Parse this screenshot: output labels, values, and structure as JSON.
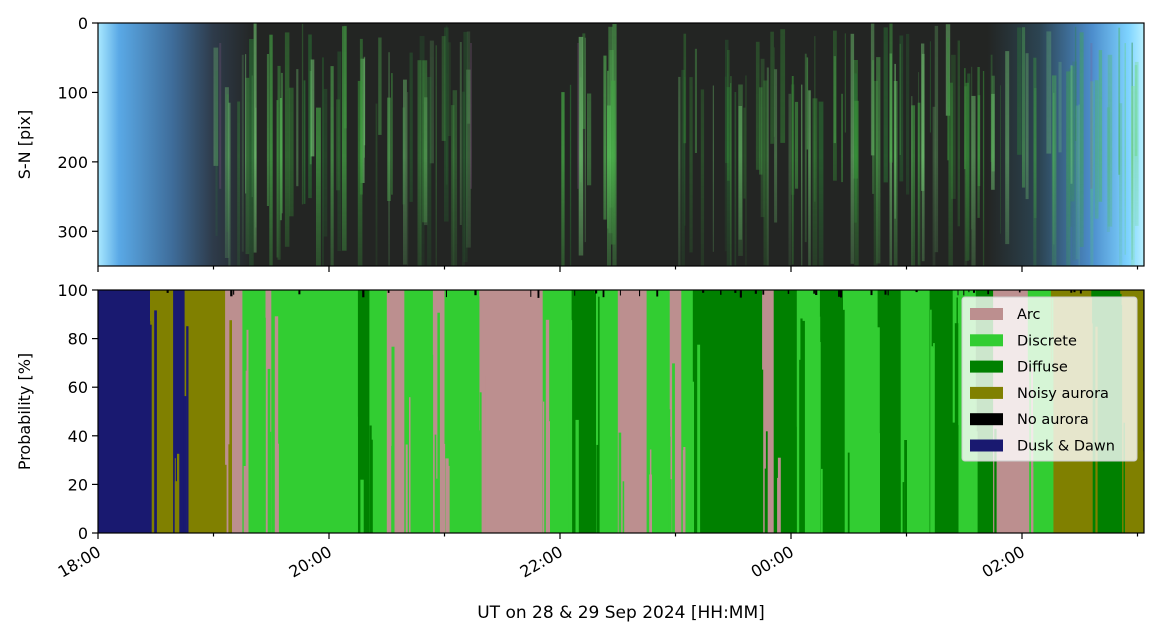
{
  "chart_data": [
    {
      "type": "heatmap",
      "description_kind": "keogram",
      "ylabel": "S-N [pix]",
      "y_ticks": [
        0,
        100,
        200,
        300
      ],
      "ylim": [
        350,
        0
      ],
      "x_range": [
        "18:00",
        "03:05"
      ],
      "aurora_bands": [
        {
          "start": 19.0,
          "end": 19.3,
          "color": "green",
          "intensity": 0.6
        },
        {
          "start": 19.3,
          "end": 19.7,
          "color": "green",
          "intensity": 0.9
        },
        {
          "start": 19.7,
          "end": 20.3,
          "color": "green",
          "intensity": 0.8
        },
        {
          "start": 20.3,
          "end": 20.9,
          "color": "green",
          "intensity": 0.6
        },
        {
          "start": 20.9,
          "end": 21.3,
          "color": "green",
          "intensity": 0.45
        },
        {
          "start": 22.0,
          "end": 22.5,
          "color": "green",
          "intensity": 0.95
        },
        {
          "start": 23.0,
          "end": 23.2,
          "color": "green",
          "intensity": 0.7
        },
        {
          "start": 23.2,
          "end": 23.6,
          "color": "green",
          "intensity": 0.6
        },
        {
          "start": 23.6,
          "end": 24.0,
          "color": "green",
          "intensity": 0.5
        },
        {
          "start": 24.0,
          "end": 25.0,
          "color": "green",
          "intensity": 0.8
        },
        {
          "start": 25.0,
          "end": 26.0,
          "color": "green",
          "intensity": 0.7
        },
        {
          "start": 26.0,
          "end": 27.0,
          "color": "green",
          "intensity": 0.65
        }
      ]
    },
    {
      "type": "area",
      "stacked": true,
      "ylabel": "Probability [%]",
      "xlabel": "UT on 28 & 29 Sep 2024 [HH:MM]",
      "ylim": [
        0,
        100
      ],
      "y_ticks": [
        0,
        20,
        40,
        60,
        80,
        100
      ],
      "x_ticks": [
        "18:00",
        "20:00",
        "22:00",
        "00:00",
        "02:00"
      ],
      "legend_position": "top-right",
      "series": [
        {
          "name": "Arc",
          "color": "#bc8f8f"
        },
        {
          "name": "Discrete",
          "color": "#32cd32"
        },
        {
          "name": "Diffuse",
          "color": "#008000"
        },
        {
          "name": "Noisy aurora",
          "color": "#808000"
        },
        {
          "name": "No aurora",
          "color": "#000000"
        },
        {
          "name": "Dusk & Dawn",
          "color": "#191970"
        }
      ],
      "dominant_class_segments": [
        {
          "start": 18.0,
          "end": 18.45,
          "class": "Dusk & Dawn"
        },
        {
          "start": 18.45,
          "end": 18.65,
          "class": "Noisy aurora"
        },
        {
          "start": 18.65,
          "end": 18.75,
          "class": "Dusk & Dawn"
        },
        {
          "start": 18.75,
          "end": 19.1,
          "class": "Noisy aurora"
        },
        {
          "start": 19.1,
          "end": 19.25,
          "class": "Arc"
        },
        {
          "start": 19.25,
          "end": 19.45,
          "class": "Discrete"
        },
        {
          "start": 19.45,
          "end": 19.5,
          "class": "Arc"
        },
        {
          "start": 19.5,
          "end": 20.25,
          "class": "Discrete"
        },
        {
          "start": 20.25,
          "end": 20.35,
          "class": "Diffuse"
        },
        {
          "start": 20.35,
          "end": 20.5,
          "class": "Discrete"
        },
        {
          "start": 20.5,
          "end": 20.65,
          "class": "Arc"
        },
        {
          "start": 20.65,
          "end": 20.9,
          "class": "Discrete"
        },
        {
          "start": 20.9,
          "end": 21.0,
          "class": "Arc"
        },
        {
          "start": 21.0,
          "end": 21.3,
          "class": "Discrete"
        },
        {
          "start": 21.3,
          "end": 21.35,
          "class": "Arc"
        },
        {
          "start": 21.35,
          "end": 21.85,
          "class": "Arc"
        },
        {
          "start": 21.85,
          "end": 22.1,
          "class": "Discrete"
        },
        {
          "start": 22.1,
          "end": 22.3,
          "class": "Diffuse"
        },
        {
          "start": 22.3,
          "end": 22.5,
          "class": "Discrete"
        },
        {
          "start": 22.5,
          "end": 22.75,
          "class": "Arc"
        },
        {
          "start": 22.75,
          "end": 22.95,
          "class": "Discrete"
        },
        {
          "start": 22.95,
          "end": 23.05,
          "class": "Arc"
        },
        {
          "start": 23.05,
          "end": 23.15,
          "class": "Discrete"
        },
        {
          "start": 23.15,
          "end": 23.5,
          "class": "Diffuse"
        },
        {
          "start": 23.5,
          "end": 23.75,
          "class": "Diffuse"
        },
        {
          "start": 23.75,
          "end": 23.85,
          "class": "Arc"
        },
        {
          "start": 23.85,
          "end": 24.05,
          "class": "Diffuse"
        },
        {
          "start": 24.05,
          "end": 24.25,
          "class": "Discrete"
        },
        {
          "start": 24.25,
          "end": 24.45,
          "class": "Diffuse"
        },
        {
          "start": 24.45,
          "end": 24.75,
          "class": "Discrete"
        },
        {
          "start": 24.75,
          "end": 24.95,
          "class": "Diffuse"
        },
        {
          "start": 24.95,
          "end": 25.2,
          "class": "Discrete"
        },
        {
          "start": 25.2,
          "end": 25.4,
          "class": "Diffuse"
        },
        {
          "start": 25.4,
          "end": 25.6,
          "class": "Discrete"
        },
        {
          "start": 25.6,
          "end": 25.75,
          "class": "Diffuse"
        },
        {
          "start": 25.75,
          "end": 26.05,
          "class": "Arc"
        },
        {
          "start": 26.05,
          "end": 26.25,
          "class": "Discrete"
        },
        {
          "start": 26.25,
          "end": 26.6,
          "class": "Noisy aurora"
        },
        {
          "start": 26.6,
          "end": 26.85,
          "class": "Diffuse"
        },
        {
          "start": 26.85,
          "end": 27.05,
          "class": "Noisy aurora"
        },
        {
          "start": 27.05,
          "end": 27.1,
          "class": "Dusk & Dawn"
        }
      ]
    }
  ]
}
